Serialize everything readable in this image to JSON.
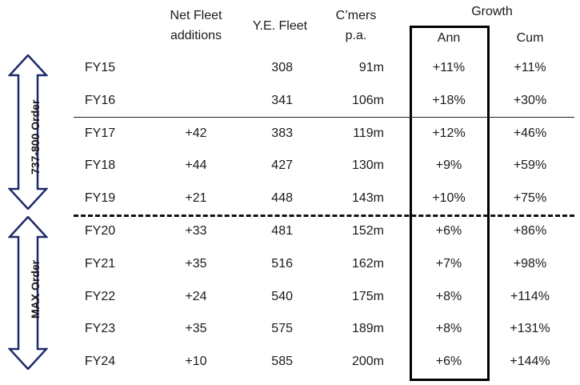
{
  "headers": {
    "net_fleet": [
      "Net Fleet",
      "additions"
    ],
    "ye_fleet": "Y.E. Fleet",
    "customers": [
      "C’mers",
      "p.a."
    ],
    "growth": "Growth",
    "ann": "Ann",
    "cum": "Cum"
  },
  "side_labels": {
    "order_737": "737-800 Order",
    "order_max": "MAX Order"
  },
  "rows": [
    {
      "year": "FY15",
      "net_additions": "",
      "ye_fleet": "308",
      "customers": "91m",
      "ann": "+11%",
      "cum": "+11%"
    },
    {
      "year": "FY16",
      "net_additions": "",
      "ye_fleet": "341",
      "customers": "106m",
      "ann": "+18%",
      "cum": "+30%"
    },
    {
      "year": "FY17",
      "net_additions": "+42",
      "ye_fleet": "383",
      "customers": "119m",
      "ann": "+12%",
      "cum": "+46%"
    },
    {
      "year": "FY18",
      "net_additions": "+44",
      "ye_fleet": "427",
      "customers": "130m",
      "ann": "+9%",
      "cum": "+59%"
    },
    {
      "year": "FY19",
      "net_additions": "+21",
      "ye_fleet": "448",
      "customers": "143m",
      "ann": "+10%",
      "cum": "+75%"
    },
    {
      "year": "FY20",
      "net_additions": "+33",
      "ye_fleet": "481",
      "customers": "152m",
      "ann": "+6%",
      "cum": "+86%"
    },
    {
      "year": "FY21",
      "net_additions": "+35",
      "ye_fleet": "516",
      "customers": "162m",
      "ann": "+7%",
      "cum": "+98%"
    },
    {
      "year": "FY22",
      "net_additions": "+24",
      "ye_fleet": "540",
      "customers": "175m",
      "ann": "+8%",
      "cum": "+114%"
    },
    {
      "year": "FY23",
      "net_additions": "+35",
      "ye_fleet": "575",
      "customers": "189m",
      "ann": "+8%",
      "cum": "+131%"
    },
    {
      "year": "FY24",
      "net_additions": "+10",
      "ye_fleet": "585",
      "customers": "200m",
      "ann": "+6%",
      "cum": "+144%"
    }
  ],
  "colors": {
    "arrow_fill": "#ffffff",
    "arrow_stroke": "#1f2a6b",
    "growth_box": "#000000"
  }
}
